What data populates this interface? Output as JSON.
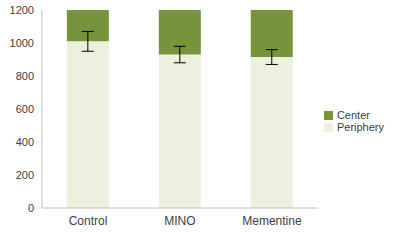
{
  "chart_data": {
    "type": "bar",
    "stacked": true,
    "categories": [
      "Control",
      "MINO",
      "Mementine"
    ],
    "series": [
      {
        "name": "Periphery",
        "color": "#ebf1de",
        "values": [
          1010,
          930,
          915
        ],
        "errors": [
          60,
          50,
          45
        ]
      },
      {
        "name": "Center",
        "color": "#77933c",
        "values": [
          190,
          270,
          285
        ]
      }
    ],
    "ylim": [
      0,
      1200
    ],
    "yticks": [
      0,
      200,
      400,
      600,
      800,
      1000,
      1200
    ],
    "grid": false,
    "legend": "right"
  }
}
